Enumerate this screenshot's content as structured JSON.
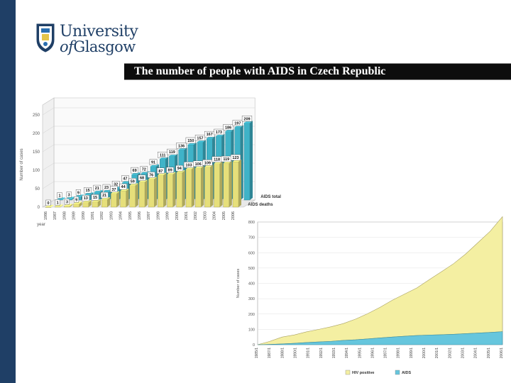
{
  "header": {
    "logo_line1": "University",
    "logo_line2_prefix": "of",
    "logo_line2_main": "Glasgow",
    "slide_title": "The number of people with AIDS in Czech Republic"
  },
  "colors": {
    "sidebar": "#1f3f66",
    "title_bar": "#0d0d0d",
    "aids_total": "#3fb3c8",
    "aids_deaths": "#e6df7a",
    "hiv_positive": "#f4efa2",
    "aids_area": "#66c6dd"
  },
  "chart_data": [
    {
      "type": "bar",
      "subtype": "3d-grouped",
      "title": "",
      "ylabel": "Number of cases",
      "xlabel": "year",
      "ylim": [
        0,
        250
      ],
      "yticks": [
        "0",
        "50",
        "100",
        "150",
        "200",
        "250"
      ],
      "categories": [
        "1986",
        "1987",
        "1988",
        "1989",
        "1990",
        "1991",
        "1992",
        "1993",
        "1994",
        "1995",
        "1996",
        "1997",
        "1998",
        "1999",
        "2000",
        "2001",
        "2002",
        "2003",
        "2004",
        "2005",
        "2006"
      ],
      "series": [
        {
          "name": "AIDS total",
          "values": [
            1,
            3,
            9,
            15,
            21,
            23,
            32,
            47,
            69,
            72,
            91,
            111,
            119,
            136,
            150,
            157,
            167,
            173,
            186,
            197,
            209
          ],
          "labels": [
            "1",
            "3",
            "9",
            "15",
            "21",
            "23",
            "32",
            "47",
            "69",
            "72",
            "91",
            "111",
            "119",
            "136",
            "150",
            "157",
            "167",
            "173",
            "186",
            "197",
            "209"
          ]
        },
        {
          "name": "AIDS deaths",
          "values": [
            0,
            1,
            3,
            9,
            13,
            15,
            21,
            37,
            44,
            59,
            68,
            76,
            87,
            89,
            94,
            103,
            106,
            109,
            118,
            119,
            123
          ],
          "labels": [
            "0",
            "1",
            "3",
            "9",
            "13",
            "15",
            "21",
            "37",
            "44",
            "59",
            "68",
            "76",
            "87",
            "89",
            "94",
            "103",
            "106",
            "109",
            "118",
            "119",
            "123"
          ]
        }
      ]
    },
    {
      "type": "area",
      "subtype": "stacked",
      "title": "",
      "ylabel": "Number of cases",
      "xlabel": "",
      "ylim": [
        0,
        800
      ],
      "yticks": [
        "0",
        "100",
        "200",
        "300",
        "400",
        "500",
        "600",
        "700",
        "800"
      ],
      "x_tick_labels": [
        "1985/1",
        "1987/1",
        "1988/1",
        "1990/1",
        "1991/1",
        "1992/1",
        "1993/1",
        "1994/1",
        "1995/1",
        "1996/1",
        "1997/1",
        "1998/1",
        "1999/1",
        "2000/1",
        "2001/1",
        "2002/1",
        "2003/1",
        "2004/1",
        "2005/1",
        "2006/1"
      ],
      "series": [
        {
          "name": "HIV positive",
          "values": [
            0,
            20,
            45,
            55,
            70,
            82,
            95,
            110,
            135,
            165,
            200,
            240,
            275,
            310,
            360,
            410,
            460,
            520,
            590,
            660,
            750
          ]
        },
        {
          "name": "AIDS",
          "values": [
            0,
            2,
            5,
            9,
            14,
            18,
            22,
            28,
            32,
            38,
            44,
            50,
            55,
            60,
            63,
            65,
            68,
            72,
            76,
            80,
            85
          ]
        }
      ]
    }
  ]
}
